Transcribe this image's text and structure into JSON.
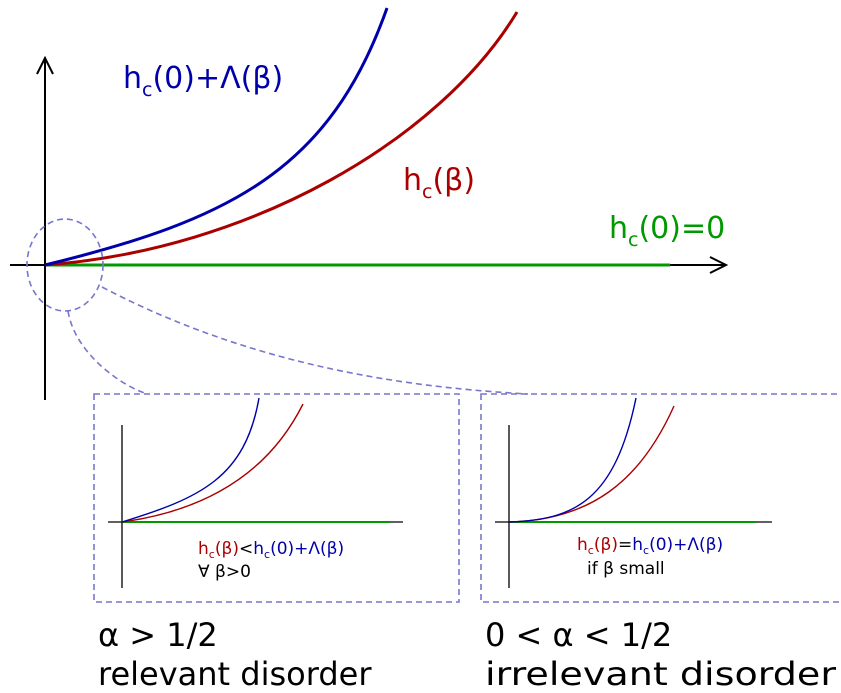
{
  "main_plot": {
    "label_upper_h": "h",
    "label_upper_sub": "c",
    "label_upper_rest": "(0)+Λ(β)",
    "label_mid_h": "h",
    "label_mid_sub": "c",
    "label_mid_rest": "(β)",
    "label_flat_h": "h",
    "label_flat_sub": "c",
    "label_flat_rest": "(0)=0"
  },
  "panel_left": {
    "rel_lhs_h": "h",
    "rel_lhs_sub": "c",
    "rel_lhs_rest": "(β)",
    "rel_op": "<",
    "rel_rhs_h": "h",
    "rel_rhs_sub": "c",
    "rel_rhs_rest": "(0)+Λ(β)",
    "condition": "∀ β>0",
    "caption_line1": "α > 1/2",
    "caption_line2": "relevant disorder"
  },
  "panel_right": {
    "rel_lhs_h": "h",
    "rel_lhs_sub": "c",
    "rel_lhs_rest": "(β)",
    "rel_op": "=",
    "rel_rhs_h": "h",
    "rel_rhs_sub": "c",
    "rel_rhs_rest": "(0)+Λ(β)",
    "condition": "if β small",
    "caption_line1": "0 < α < 1/2",
    "caption_line2": "irrelevant disorder"
  },
  "colors": {
    "blue": "#0000aa",
    "red": "#aa0000",
    "green": "#009900",
    "dashed": "#7777cc",
    "axis": "#000000"
  }
}
